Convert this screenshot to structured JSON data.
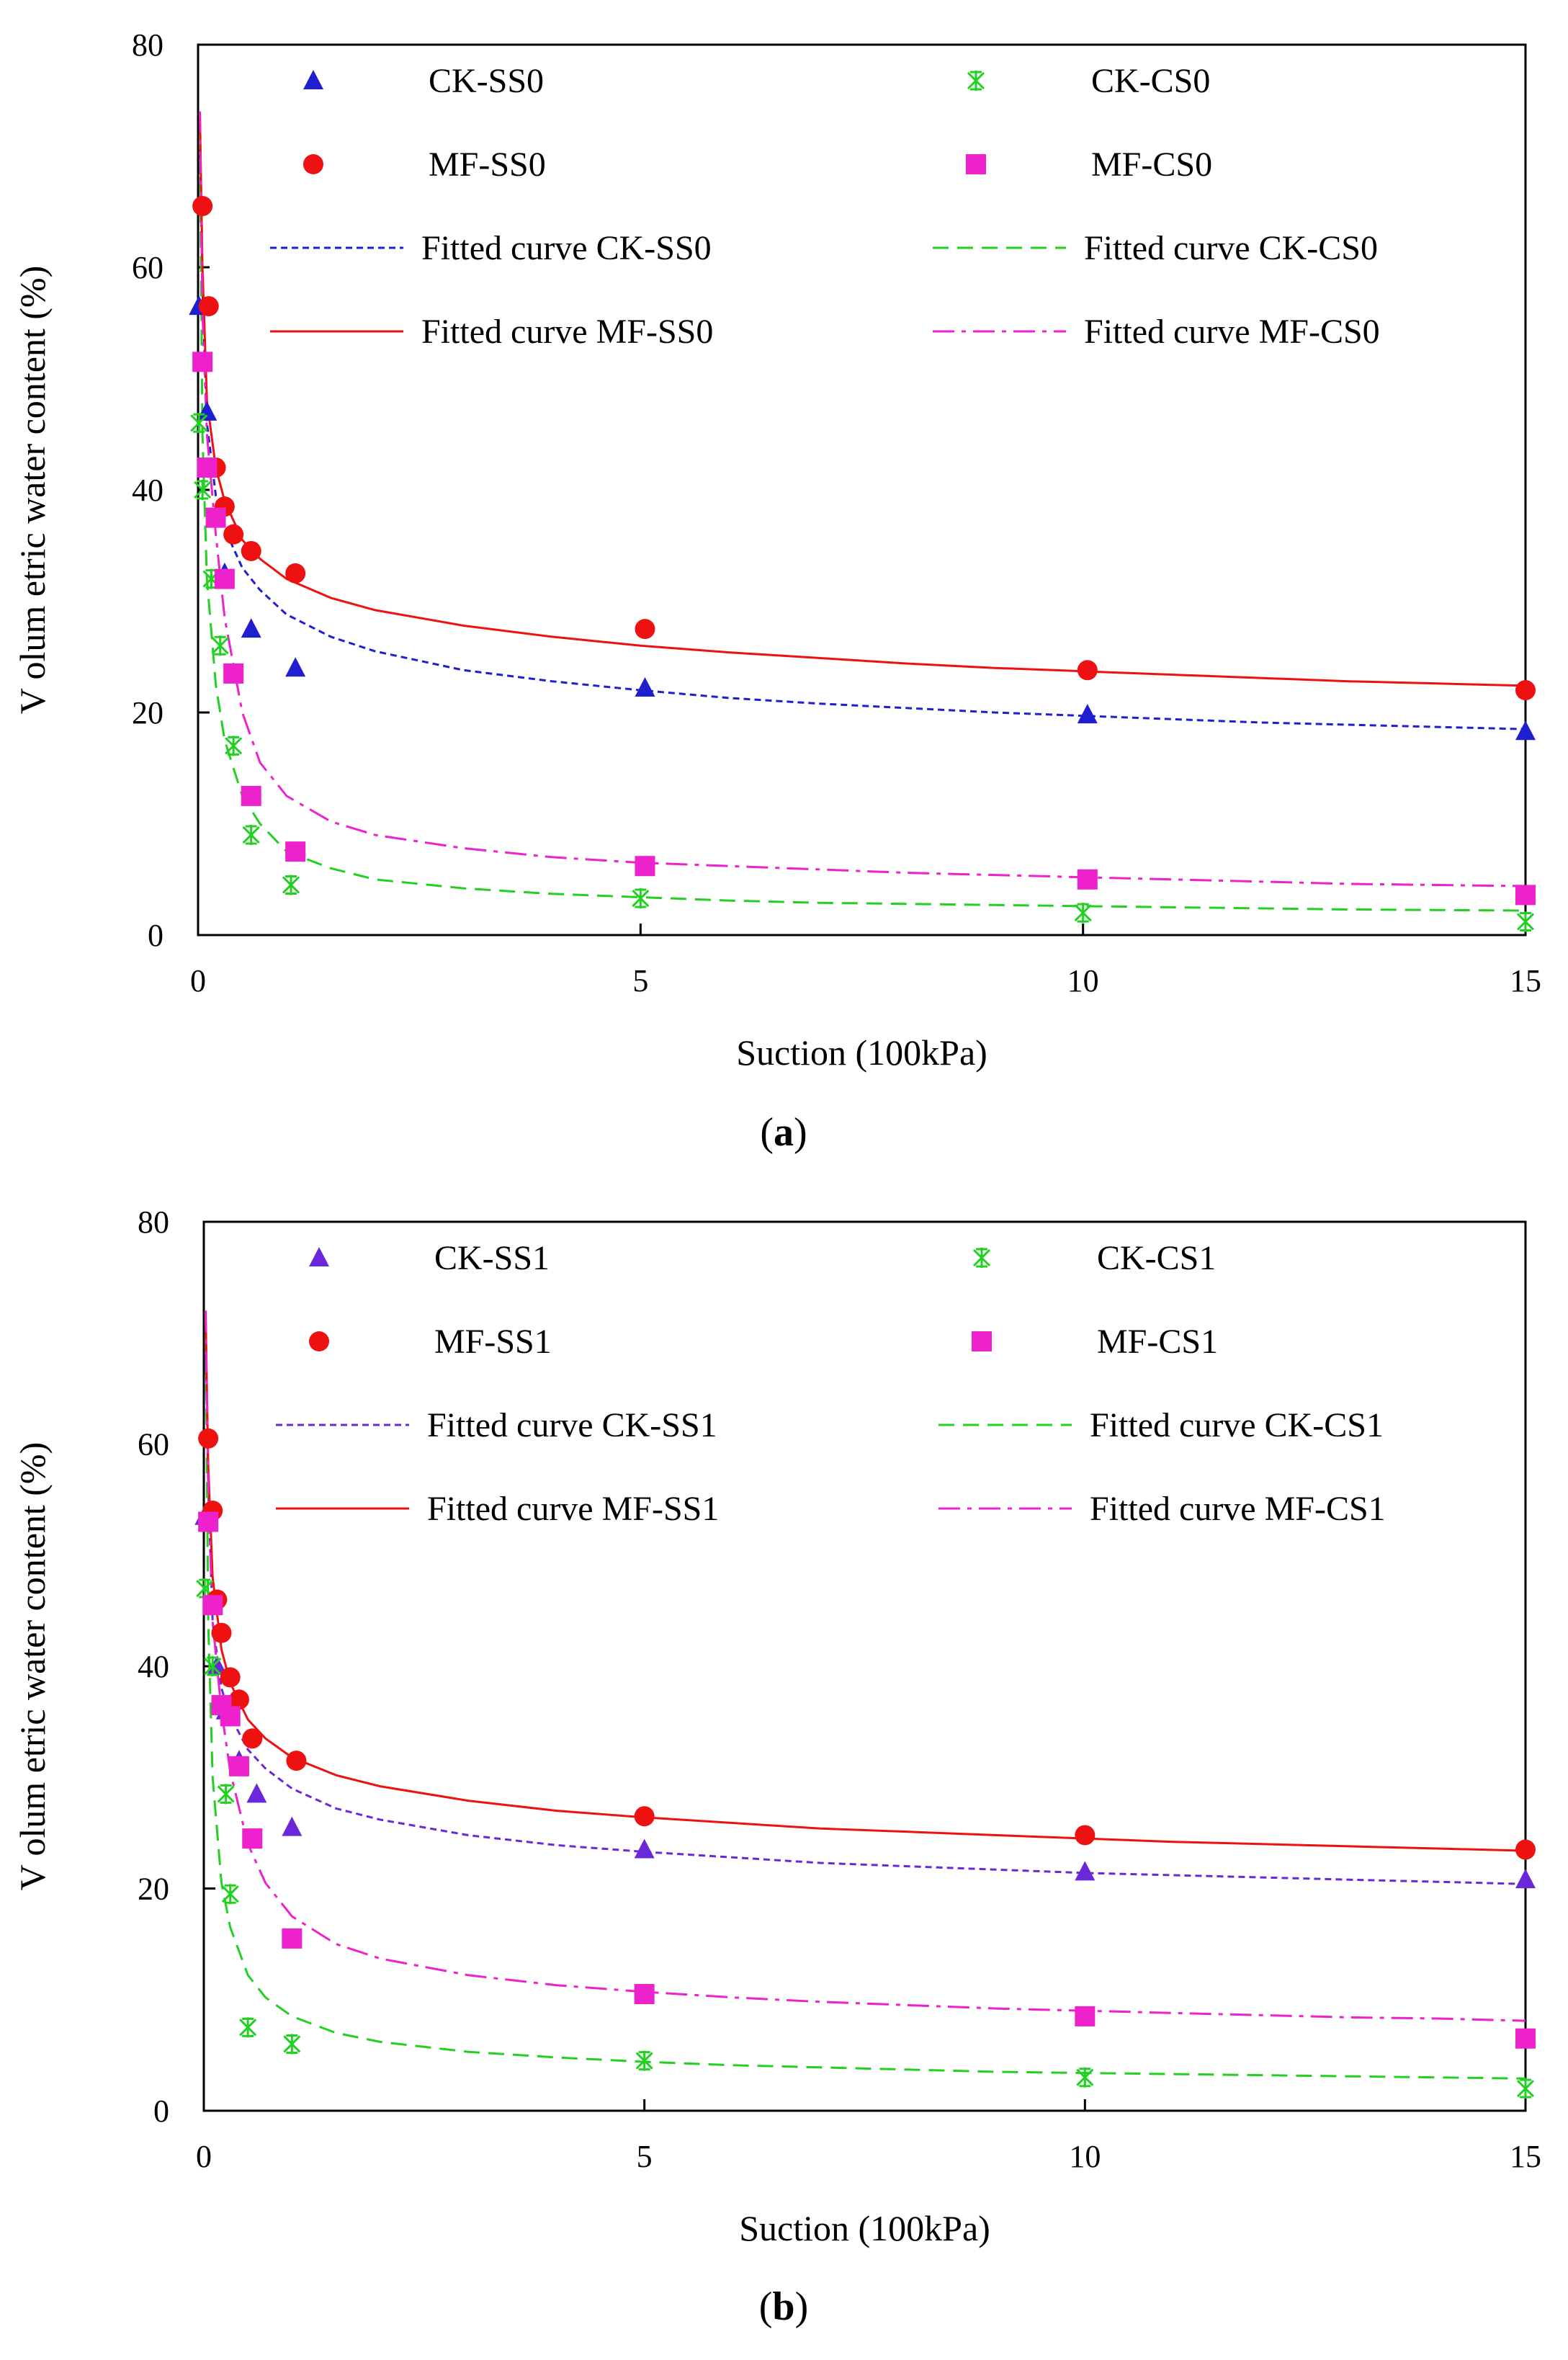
{
  "chart_data": [
    {
      "type": "scatter",
      "panel": "a",
      "caption_letter": "a",
      "xlabel": "Suction (100kPa)",
      "ylabel": "V olum etric water content (%)",
      "xlim": [
        0,
        15
      ],
      "ylim": [
        0,
        80
      ],
      "xticks": [
        0,
        5,
        10,
        15
      ],
      "yticks": [
        0,
        20,
        40,
        60,
        80
      ],
      "colors": {
        "CK-SS0": "#1f1fd0",
        "MF-SS0": "#ee1111",
        "CK-CS0": "#22d022",
        "MF-CS0": "#ee22cc"
      },
      "series": [
        {
          "name": "CK-SS0",
          "marker": "triangle",
          "x": [
            0.01,
            0.1,
            0.3,
            0.6,
            1.1,
            5.05,
            10.05,
            15.0
          ],
          "y": [
            56.5,
            47,
            32.5,
            27.5,
            24,
            22.2,
            19.8,
            18.3
          ]
        },
        {
          "name": "CK-CS0",
          "marker": "asterisk",
          "x": [
            0.01,
            0.05,
            0.15,
            0.25,
            0.4,
            0.6,
            1.05,
            5.0,
            10.0,
            15.0
          ],
          "y": [
            46,
            40,
            32,
            26,
            17,
            9,
            4.5,
            3.3,
            2,
            1.2
          ]
        },
        {
          "name": "MF-SS0",
          "marker": "circle",
          "x": [
            0.05,
            0.12,
            0.2,
            0.3,
            0.4,
            0.6,
            1.1,
            5.05,
            10.05,
            15.0
          ],
          "y": [
            65.5,
            56.5,
            42,
            38.5,
            36,
            34.5,
            32.5,
            27.5,
            23.8,
            22
          ]
        },
        {
          "name": "MF-CS0",
          "marker": "square",
          "x": [
            0.05,
            0.1,
            0.2,
            0.3,
            0.4,
            0.6,
            1.1,
            5.05,
            10.05,
            15.0
          ],
          "y": [
            51.5,
            42,
            37.5,
            32,
            23.5,
            12.5,
            7.5,
            6.2,
            5,
            3.6
          ]
        }
      ],
      "fitted_curves": [
        {
          "name": "Fitted curve CK-SS0",
          "style": "dotted",
          "x": [
            0.02,
            0.05,
            0.1,
            0.2,
            0.3,
            0.5,
            0.7,
            1,
            1.5,
            2,
            3,
            4,
            5,
            6,
            7,
            8,
            9,
            10,
            11,
            12,
            13,
            14,
            15
          ],
          "y": [
            72,
            58,
            46,
            39.5,
            36.5,
            33,
            31,
            28.8,
            26.8,
            25.5,
            23.8,
            22.8,
            22,
            21.3,
            20.8,
            20.4,
            20,
            19.7,
            19.4,
            19.1,
            18.9,
            18.7,
            18.5
          ]
        },
        {
          "name": "Fitted curve CK-CS0",
          "style": "dashed",
          "x": [
            0.02,
            0.05,
            0.1,
            0.2,
            0.3,
            0.5,
            0.7,
            1,
            1.5,
            2,
            3,
            4,
            5,
            6,
            7,
            8,
            9,
            10,
            11,
            12,
            13,
            14,
            15
          ],
          "y": [
            72,
            45,
            32,
            22.5,
            17.5,
            12.5,
            10,
            7.5,
            6,
            5,
            4.2,
            3.7,
            3.4,
            3.1,
            2.9,
            2.8,
            2.7,
            2.6,
            2.5,
            2.4,
            2.3,
            2.25,
            2.2
          ]
        },
        {
          "name": "Fitted curve MF-SS0",
          "style": "solid",
          "x": [
            0.02,
            0.05,
            0.1,
            0.2,
            0.3,
            0.5,
            0.7,
            1,
            1.5,
            2,
            3,
            4,
            5,
            6,
            7,
            8,
            9,
            10,
            11,
            12,
            13,
            14,
            15
          ],
          "y": [
            74,
            60,
            48,
            42,
            39,
            35.5,
            33.8,
            32,
            30.3,
            29.2,
            27.8,
            26.8,
            26,
            25.4,
            24.9,
            24.4,
            24,
            23.7,
            23.4,
            23.1,
            22.8,
            22.6,
            22.4
          ]
        },
        {
          "name": "Fitted curve MF-CS0",
          "style": "dashdot",
          "x": [
            0.02,
            0.05,
            0.1,
            0.2,
            0.3,
            0.5,
            0.7,
            1,
            1.5,
            2,
            3,
            4,
            5,
            6,
            7,
            8,
            9,
            10,
            11,
            12,
            13,
            14,
            15
          ],
          "y": [
            74,
            56,
            45,
            36,
            28.5,
            20,
            15.5,
            12.5,
            10.2,
            9,
            7.8,
            7,
            6.5,
            6.2,
            5.9,
            5.6,
            5.4,
            5.2,
            5,
            4.8,
            4.6,
            4.5,
            4.4
          ]
        }
      ],
      "legend": [
        "CK-SS0",
        "CK-CS0",
        "MF-SS0",
        "MF-CS0",
        "Fitted curve CK-SS0",
        "Fitted curve CK-CS0",
        "Fitted curve MF-SS0",
        "Fitted curve MF-CS0"
      ]
    },
    {
      "type": "scatter",
      "panel": "b",
      "caption_letter": "b",
      "xlabel": "Suction (100kPa)",
      "ylabel": "V olum etric water content (%)",
      "xlim": [
        0,
        15
      ],
      "ylim": [
        0,
        80
      ],
      "xticks": [
        0,
        5,
        10,
        15
      ],
      "yticks": [
        0,
        20,
        40,
        60,
        80
      ],
      "colors": {
        "CK-SS1": "#6a28d8",
        "MF-SS1": "#ee1111",
        "CK-CS1": "#22d022",
        "MF-CS1": "#ee22cc"
      },
      "series": [
        {
          "name": "CK-SS1",
          "marker": "triangle",
          "x": [
            0.01,
            0.15,
            0.25,
            0.4,
            0.6,
            1.0,
            5.0,
            10.0,
            15.0
          ],
          "y": [
            53.5,
            40,
            36,
            31.5,
            28.5,
            25.5,
            23.5,
            21.5,
            20.8
          ]
        },
        {
          "name": "CK-CS1",
          "marker": "asterisk",
          "x": [
            0.01,
            0.1,
            0.25,
            0.3,
            0.5,
            1.0,
            5.0,
            10.0,
            15.0
          ],
          "y": [
            47,
            40,
            28.5,
            19.5,
            7.5,
            6,
            4.5,
            3,
            2
          ]
        },
        {
          "name": "MF-SS1",
          "marker": "circle",
          "x": [
            0.05,
            0.1,
            0.15,
            0.2,
            0.3,
            0.4,
            0.55,
            1.05,
            5.0,
            10.0,
            15.0
          ],
          "y": [
            60.5,
            54,
            46,
            43,
            39,
            37,
            33.5,
            31.5,
            26.5,
            24.8,
            23.5
          ]
        },
        {
          "name": "MF-CS1",
          "marker": "square",
          "x": [
            0.05,
            0.1,
            0.2,
            0.3,
            0.4,
            0.55,
            1.0,
            5.0,
            10.0,
            15.0
          ],
          "y": [
            53,
            45.5,
            36.5,
            35.5,
            31,
            24.5,
            15.5,
            10.5,
            8.5,
            6.5
          ]
        }
      ],
      "fitted_curves": [
        {
          "name": "Fitted curve CK-SS1",
          "style": "dotted",
          "x": [
            0.02,
            0.05,
            0.1,
            0.2,
            0.3,
            0.5,
            0.7,
            1,
            1.5,
            2,
            3,
            4,
            5,
            6,
            7,
            8,
            9,
            10,
            11,
            12,
            13,
            14,
            15
          ],
          "y": [
            70,
            56,
            44,
            38,
            35.5,
            32.5,
            30.8,
            29,
            27.2,
            26.2,
            24.8,
            23.9,
            23.3,
            22.8,
            22.3,
            22,
            21.7,
            21.4,
            21.2,
            21,
            20.8,
            20.6,
            20.4
          ]
        },
        {
          "name": "Fitted curve CK-CS1",
          "style": "dashed",
          "x": [
            0.02,
            0.05,
            0.1,
            0.2,
            0.3,
            0.5,
            0.7,
            1,
            1.5,
            2,
            3,
            4,
            5,
            6,
            7,
            8,
            9,
            10,
            11,
            12,
            13,
            14,
            15
          ],
          "y": [
            72,
            44,
            30,
            20.5,
            16.5,
            12.2,
            10.2,
            8.5,
            7,
            6.2,
            5.3,
            4.8,
            4.4,
            4.1,
            3.9,
            3.7,
            3.5,
            3.4,
            3.3,
            3.2,
            3.1,
            3.0,
            2.9
          ]
        },
        {
          "name": "Fitted curve MF-SS1",
          "style": "solid",
          "x": [
            0.02,
            0.05,
            0.1,
            0.2,
            0.3,
            0.5,
            0.7,
            1,
            1.5,
            2,
            3,
            4,
            5,
            6,
            7,
            8,
            9,
            10,
            11,
            12,
            13,
            14,
            15
          ],
          "y": [
            72,
            58,
            48,
            41.5,
            38.5,
            35.2,
            33.5,
            31.8,
            30.2,
            29.2,
            27.9,
            27,
            26.4,
            25.9,
            25.4,
            25.1,
            24.8,
            24.5,
            24.2,
            24,
            23.8,
            23.6,
            23.4
          ]
        },
        {
          "name": "Fitted curve MF-CS1",
          "style": "dashdot",
          "x": [
            0.02,
            0.05,
            0.1,
            0.2,
            0.3,
            0.5,
            0.7,
            1,
            1.5,
            2,
            3,
            4,
            5,
            6,
            7,
            8,
            9,
            10,
            11,
            12,
            13,
            14,
            15
          ],
          "y": [
            72,
            56,
            44,
            36,
            30.5,
            24,
            20.5,
            17.5,
            15,
            13.7,
            12.2,
            11.3,
            10.7,
            10.2,
            9.8,
            9.5,
            9.2,
            9,
            8.8,
            8.6,
            8.4,
            8.3,
            8.1
          ]
        }
      ],
      "legend": [
        "CK-SS1",
        "CK-CS1",
        "MF-SS1",
        "MF-CS1",
        "Fitted curve CK-SS1",
        "Fitted curve CK-CS1",
        "Fitted curve MF-SS1",
        "Fitted curve MF-CS1"
      ]
    }
  ]
}
